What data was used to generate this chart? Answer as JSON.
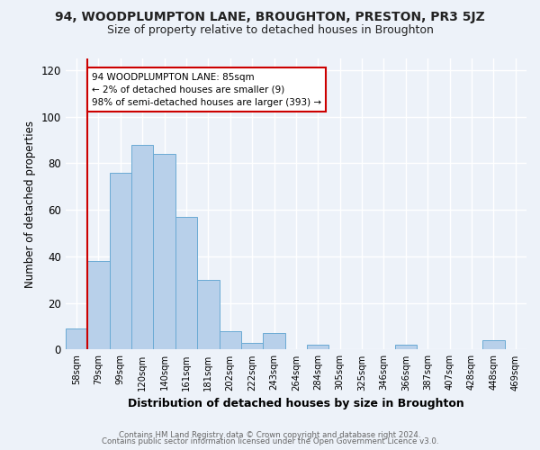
{
  "title_line1": "94, WOODPLUMPTON LANE, BROUGHTON, PRESTON, PR3 5JZ",
  "subtitle": "Size of property relative to detached houses in Broughton",
  "xlabel": "Distribution of detached houses by size in Broughton",
  "ylabel": "Number of detached properties",
  "bin_labels": [
    "58sqm",
    "79sqm",
    "99sqm",
    "120sqm",
    "140sqm",
    "161sqm",
    "181sqm",
    "202sqm",
    "222sqm",
    "243sqm",
    "264sqm",
    "284sqm",
    "305sqm",
    "325sqm",
    "346sqm",
    "366sqm",
    "387sqm",
    "407sqm",
    "428sqm",
    "448sqm",
    "469sqm"
  ],
  "bar_values": [
    9,
    38,
    76,
    88,
    84,
    57,
    30,
    8,
    3,
    7,
    0,
    2,
    0,
    0,
    0,
    2,
    0,
    0,
    0,
    4,
    0
  ],
  "bar_color": "#b8d0ea",
  "bar_edge_color": "#6aaad4",
  "vline_x_idx": 1,
  "vline_color": "#cc0000",
  "annotation_line1": "94 WOODPLUMPTON LANE: 85sqm",
  "annotation_line2": "← 2% of detached houses are smaller (9)",
  "annotation_line3": "98% of semi-detached houses are larger (393) →",
  "ylim": [
    0,
    125
  ],
  "yticks": [
    0,
    20,
    40,
    60,
    80,
    100,
    120
  ],
  "bg_color": "#edf2f9",
  "grid_color": "#ffffff",
  "footer_line1": "Contains HM Land Registry data © Crown copyright and database right 2024.",
  "footer_line2": "Contains public sector information licensed under the Open Government Licence v3.0."
}
